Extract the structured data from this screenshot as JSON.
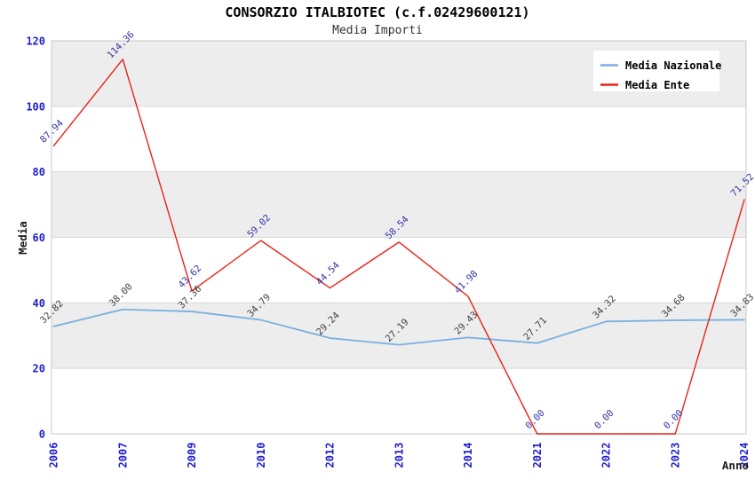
{
  "page": {
    "background": "#ffffff"
  },
  "chart_data": {
    "type": "line",
    "title": "CONSORZIO ITALBIOTEC (c.f.02429600121)",
    "subtitle": "Media Importi",
    "xlabel": "Anno",
    "ylabel": "Media",
    "categories": [
      "2006",
      "2007",
      "2009",
      "2010",
      "2012",
      "2013",
      "2014",
      "2021",
      "2022",
      "2023",
      "2024"
    ],
    "series": [
      {
        "name": "Media Nazionale",
        "color": "#79afe1",
        "label_color": "#404040",
        "values": [
          32.82,
          38.0,
          37.36,
          34.79,
          29.24,
          27.19,
          29.43,
          27.71,
          34.32,
          34.68,
          34.83
        ]
      },
      {
        "name": "Media Ente",
        "color": "#e8231a",
        "label_color": "#3333a3",
        "values": [
          87.94,
          114.36,
          43.62,
          59.02,
          44.54,
          58.54,
          41.98,
          0.0,
          0.0,
          0.0,
          71.52
        ]
      }
    ],
    "ylim": [
      0,
      120
    ],
    "ytick_step": 20,
    "grid": true,
    "legend_position": "top-right",
    "value_label_decimals": 2,
    "styles": {
      "tick_color": "#2020cc",
      "band_fill": "#ededed",
      "grid_color": "#d8d8d8",
      "border_color": "#c8c8c8",
      "title_color": "#000000",
      "subtitle_color": "#333333",
      "axis_title_color": "#1a1a1a",
      "legend_bg": "#ffffff"
    }
  }
}
